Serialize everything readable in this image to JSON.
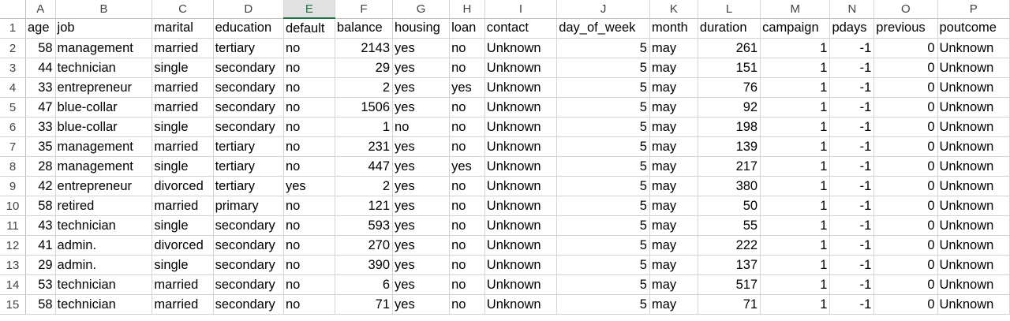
{
  "sheet": {
    "column_letters": [
      "A",
      "B",
      "C",
      "D",
      "E",
      "F",
      "G",
      "H",
      "I",
      "J",
      "K",
      "L",
      "M",
      "N",
      "O",
      "P"
    ],
    "selected_column": "E",
    "numeric_columns": [
      0,
      5,
      9,
      11,
      12,
      13,
      14
    ],
    "row_numbers": [
      "1",
      "2",
      "3",
      "4",
      "5",
      "6",
      "7",
      "8",
      "9",
      "10",
      "11",
      "12",
      "13",
      "14",
      "15"
    ],
    "rows": [
      [
        "age",
        "job",
        "marital",
        "education",
        "default",
        "balance",
        "housing",
        "loan",
        "contact",
        "day_of_week",
        "month",
        "duration",
        "campaign",
        "pdays",
        "previous",
        "poutcome"
      ],
      [
        "58",
        "management",
        "married",
        "tertiary",
        "no",
        "2143",
        "yes",
        "no",
        "Unknown",
        "5",
        "may",
        "261",
        "1",
        "-1",
        "0",
        "Unknown"
      ],
      [
        "44",
        "technician",
        "single",
        "secondary",
        "no",
        "29",
        "yes",
        "no",
        "Unknown",
        "5",
        "may",
        "151",
        "1",
        "-1",
        "0",
        "Unknown"
      ],
      [
        "33",
        "entrepreneur",
        "married",
        "secondary",
        "no",
        "2",
        "yes",
        "yes",
        "Unknown",
        "5",
        "may",
        "76",
        "1",
        "-1",
        "0",
        "Unknown"
      ],
      [
        "47",
        "blue-collar",
        "married",
        "secondary",
        "no",
        "1506",
        "yes",
        "no",
        "Unknown",
        "5",
        "may",
        "92",
        "1",
        "-1",
        "0",
        "Unknown"
      ],
      [
        "33",
        "blue-collar",
        "single",
        "secondary",
        "no",
        "1",
        "no",
        "no",
        "Unknown",
        "5",
        "may",
        "198",
        "1",
        "-1",
        "0",
        "Unknown"
      ],
      [
        "35",
        "management",
        "married",
        "tertiary",
        "no",
        "231",
        "yes",
        "no",
        "Unknown",
        "5",
        "may",
        "139",
        "1",
        "-1",
        "0",
        "Unknown"
      ],
      [
        "28",
        "management",
        "single",
        "tertiary",
        "no",
        "447",
        "yes",
        "yes",
        "Unknown",
        "5",
        "may",
        "217",
        "1",
        "-1",
        "0",
        "Unknown"
      ],
      [
        "42",
        "entrepreneur",
        "divorced",
        "tertiary",
        "yes",
        "2",
        "yes",
        "no",
        "Unknown",
        "5",
        "may",
        "380",
        "1",
        "-1",
        "0",
        "Unknown"
      ],
      [
        "58",
        "retired",
        "married",
        "primary",
        "no",
        "121",
        "yes",
        "no",
        "Unknown",
        "5",
        "may",
        "50",
        "1",
        "-1",
        "0",
        "Unknown"
      ],
      [
        "43",
        "technician",
        "single",
        "secondary",
        "no",
        "593",
        "yes",
        "no",
        "Unknown",
        "5",
        "may",
        "55",
        "1",
        "-1",
        "0",
        "Unknown"
      ],
      [
        "41",
        "admin.",
        "divorced",
        "secondary",
        "no",
        "270",
        "yes",
        "no",
        "Unknown",
        "5",
        "may",
        "222",
        "1",
        "-1",
        "0",
        "Unknown"
      ],
      [
        "29",
        "admin.",
        "single",
        "secondary",
        "no",
        "390",
        "yes",
        "no",
        "Unknown",
        "5",
        "may",
        "137",
        "1",
        "-1",
        "0",
        "Unknown"
      ],
      [
        "53",
        "technician",
        "married",
        "secondary",
        "no",
        "6",
        "yes",
        "no",
        "Unknown",
        "5",
        "may",
        "517",
        "1",
        "-1",
        "0",
        "Unknown"
      ],
      [
        "58",
        "technician",
        "married",
        "secondary",
        "no",
        "71",
        "yes",
        "no",
        "Unknown",
        "5",
        "may",
        "71",
        "1",
        "-1",
        "0",
        "Unknown"
      ]
    ]
  },
  "colors": {
    "selected_header_text": "#217346",
    "gridline": "#d4d4d4"
  }
}
